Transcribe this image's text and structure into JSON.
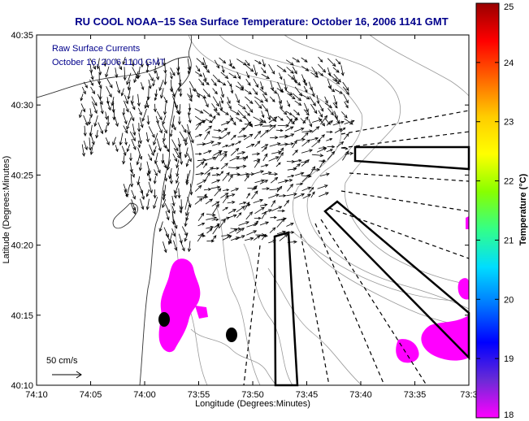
{
  "chart_data": {
    "type": "map",
    "title": "RU COOL  NOAA−15  Sea Surface Temperature:  October 16, 2006 1141 GMT",
    "xlabel": "Longitude (Degrees:Minutes)",
    "ylabel": "Latitude (Degrees:Minutes)",
    "x_ticks": [
      {
        "value": -74.1667,
        "label": "74:10"
      },
      {
        "value": -74.0833,
        "label": "74:05"
      },
      {
        "value": -74.0,
        "label": "74:00"
      },
      {
        "value": -73.9167,
        "label": "73:55"
      },
      {
        "value": -73.8333,
        "label": "73:50"
      },
      {
        "value": -73.75,
        "label": "73:45"
      },
      {
        "value": -73.6667,
        "label": "73:40"
      },
      {
        "value": -73.5833,
        "label": "73:35"
      },
      {
        "value": -73.5,
        "label": "73:3"
      }
    ],
    "y_ticks": [
      {
        "value": 40.1667,
        "label": "40:10"
      },
      {
        "value": 40.25,
        "label": "40:15"
      },
      {
        "value": 40.3333,
        "label": "40:20"
      },
      {
        "value": 40.4167,
        "label": "40:25"
      },
      {
        "value": 40.5,
        "label": "40:30"
      },
      {
        "value": 40.5833,
        "label": "40:35"
      }
    ],
    "xlim": [
      -74.1667,
      -73.5
    ],
    "ylim": [
      40.1667,
      40.5833
    ],
    "annotations": [
      "Raw Surface Currents",
      "October 16, 2006 1100 GMT"
    ],
    "scale_label": "50 cm/s",
    "colorbar": {
      "label": "Temperature (°C)",
      "range": [
        18,
        25
      ],
      "ticks": [
        {
          "value": 18,
          "label": "18"
        },
        {
          "value": 19,
          "label": "19"
        },
        {
          "value": 20,
          "label": "20"
        },
        {
          "value": 21,
          "label": "21"
        },
        {
          "value": 22,
          "label": "22"
        },
        {
          "value": 23,
          "label": "23"
        },
        {
          "value": 24,
          "label": "24"
        },
        {
          "value": 25,
          "label": "25"
        }
      ],
      "colors": [
        "#ff00ff",
        "#6a2bd6",
        "#0000ff",
        "#0077ff",
        "#00ddff",
        "#33ff88",
        "#88ff00",
        "#ffff00",
        "#ffcc00",
        "#ff6600",
        "#ff0000",
        "#990000"
      ]
    },
    "sst_color": "#ff00ff",
    "grid": false
  }
}
